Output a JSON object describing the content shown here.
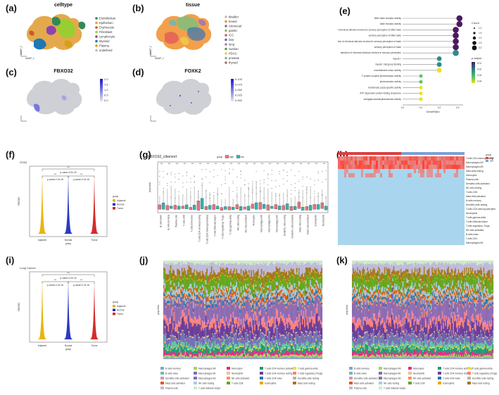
{
  "panels": {
    "a": {
      "letter": "(a)",
      "title": "celltype",
      "legend": [
        {
          "label": "Endothelium",
          "color": "#2e8b57"
        },
        {
          "label": "Epithelium",
          "color": "#e2a03a"
        },
        {
          "label": "Erythrocyte",
          "color": "#c65a2a"
        },
        {
          "label": "Fibroblast",
          "color": "#9acd32"
        },
        {
          "label": "Lymphocyte",
          "color": "#8e44ad"
        },
        {
          "label": "Myeloid",
          "color": "#1f77b4"
        },
        {
          "label": "Plasma",
          "color": "#d4a017"
        },
        {
          "label": "undefined",
          "color": "#bdbdbd"
        }
      ],
      "axis1": "UMAP_1",
      "axis2": "UMAP_2"
    },
    "b": {
      "letter": "(b)",
      "title": "tissue",
      "legend": [
        {
          "label": "bladder",
          "color": "#bdbdbd"
        },
        {
          "label": "breast",
          "color": "#f28e2b"
        },
        {
          "label": "colorectal",
          "color": "#7b7b7b"
        },
        {
          "label": "gastric",
          "color": "#7fbf7b"
        },
        {
          "label": "ICC",
          "color": "#e15759"
        },
        {
          "label": "liver",
          "color": "#4e79a7"
        },
        {
          "label": "lung",
          "color": "#b07aa1"
        },
        {
          "label": "ovarian",
          "color": "#59a14f"
        },
        {
          "label": "PDAC",
          "color": "#edc948"
        },
        {
          "label": "prostate",
          "color": "#76b7b2"
        },
        {
          "label": "thyroid",
          "color": "#9c755f"
        }
      ],
      "axis1": "UMAP_1",
      "axis2": "UMAP_2"
    },
    "c": {
      "letter": "(c)",
      "title": "FBXO32",
      "scale": [
        "2.0",
        "1.5",
        "1.0",
        "0.5",
        "0.0"
      ]
    },
    "d": {
      "letter": "(d)",
      "title": "FOXK2",
      "scale": [
        "0.100",
        "0.075",
        "0.050",
        "0.025",
        "0.000"
      ]
    },
    "e": {
      "letter": "(e)",
      "terms": [
        {
          "label": "bitter taste receptor activity",
          "ratio": 0.31,
          "count": 3,
          "p": 0.01
        },
        {
          "label": "taste receptor activity",
          "ratio": 0.31,
          "count": 3,
          "p": 0.01
        },
        {
          "label": "detection of chemical stimulus involved in sensory perception of bitter taste",
          "ratio": 0.29,
          "count": 3,
          "p": 0.01
        },
        {
          "label": "sensory perception of bitter taste",
          "ratio": 0.29,
          "count": 3,
          "p": 0.01
        },
        {
          "label": "detection of chemical stimulus involved in sensory perception of taste",
          "ratio": 0.29,
          "count": 3,
          "p": 0.01
        },
        {
          "label": "sensory perception of taste",
          "ratio": 0.29,
          "count": 3,
          "p": 0.01
        },
        {
          "label": "detection of chemical stimulus involved in sensory perception",
          "ratio": 0.29,
          "count": 3,
          "p": 0.02
        },
        {
          "label": "myosin I",
          "ratio": 0.2,
          "count": 2,
          "p": 0.02
        },
        {
          "label": "myosin I tail group binding",
          "ratio": 0.2,
          "count": 2,
          "p": 0.02
        },
        {
          "label": "microfilament motor activity",
          "ratio": 0.2,
          "count": 2,
          "p": 0.04
        },
        {
          "label": "F-protein coupled photoreceptor activity",
          "ratio": 0.1,
          "count": 1,
          "p": 0.03
        },
        {
          "label": "photoreceptor activity",
          "ratio": 0.1,
          "count": 1,
          "p": 0.03
        },
        {
          "label": "transferase (acyl) specific activity",
          "ratio": 0.1,
          "count": 1,
          "p": 0.04
        },
        {
          "label": "ATP dependent protein folding chaperone",
          "ratio": 0.1,
          "count": 1,
          "p": 0.04
        },
        {
          "label": "acetylglucosaminyltransferase activity",
          "ratio": 0.1,
          "count": 1,
          "p": 0.04
        }
      ],
      "xlabel": "GeneRatio",
      "xticks": [
        "0.0",
        "0.1",
        "0.2",
        "0.3"
      ],
      "count_title": "Count",
      "count_values": [
        "1.0",
        "1.5",
        "2.0",
        "2.5",
        "3.0"
      ],
      "p_title": "p.adjust",
      "p_values": [
        "0.01",
        "0.02",
        "0.03",
        "0.04"
      ]
    },
    "f": {
      "letter": "(f)",
      "title": "STAD",
      "ylabel": "FBXO32",
      "xlabel": "group",
      "groups": [
        "Adjacent",
        "Normal",
        "Tumor"
      ],
      "group_colors": [
        "#e8b100",
        "#1f2fbf",
        "#d42020"
      ],
      "stars": [
        "***",
        "***",
        "***"
      ],
      "pvals": [
        "p-value<2.2e-16",
        "p-value<2.2e-16",
        "p-value<2.2e-16"
      ],
      "legend_title": "group"
    },
    "g": {
      "letter": "(g)",
      "title": "FBXO32_cibersort",
      "legend_title": "group",
      "legend": [
        "high",
        "low"
      ],
      "colors": [
        "#e8737a",
        "#34b1b5"
      ],
      "ylabel": "proportion",
      "cells": [
        "B.cells.naive",
        "B.cells.memory",
        "Plasma.cells",
        "T.cells.CD8",
        "T.cells.CD4.naive",
        "T.cells.CD4.memory.resting",
        "T.cells.CD4.memory.activated",
        "T.cells.follicular.helper",
        "T.cells.regulatory..Tregs.",
        "T.cells.gamma.delta",
        "NK.cells.resting",
        "NK.cells.activated",
        "Monocytes",
        "Macrophages.M0",
        "Macrophages.M1",
        "Macrophages.M2",
        "Dendritic.cells.resting",
        "Dendritic.cells.activated",
        "Mast.cells.resting",
        "Mast.cells.activated",
        "Eosinophils",
        "Neutrophils"
      ]
    },
    "h": {
      "letter": "(h)",
      "rows": [
        "T.cells.CD4.memory.resting",
        "Macrophages.M2",
        "Macrophages.M0",
        "Mast.cells.resting",
        "Monocytes",
        "Plasma.cells",
        "Dendritic.cells.activated",
        "NK.cells.resting",
        "T.cells.CD8",
        "Mast.cells.activated",
        "B.cells.memory",
        "Dendritic.cells.resting",
        "T.cells.CD4.memory.activated",
        "Neutrophils",
        "T.cells.gamma.delta",
        "T.cells.follicular.helper",
        "T.cells.regulatory..Tregs.",
        "NK.cells.activated",
        "B.cells.naive",
        "T.cells.CD4",
        "Macrophages.M1"
      ],
      "group_label": "group",
      "groups": [
        "high",
        "low"
      ],
      "group_colors": [
        "#d94040",
        "#7b9fd6"
      ]
    },
    "i": {
      "letter": "(i)",
      "title": "Lung Cancer",
      "ylabel": "FBXO32",
      "xlabel": "group",
      "groups": [
        "Adjacent",
        "Normal",
        "Tumor"
      ],
      "group_colors": [
        "#e8b100",
        "#1f2fbf",
        "#d42020"
      ],
      "stars": [
        "***",
        "***",
        "***"
      ],
      "pvals": [
        "p-value<2.2e-16",
        "p-value<2.2e-16",
        "p-value<2.2e-16"
      ],
      "legend_title": "group"
    },
    "j": {
      "letter": "(j)",
      "ylabel": "proportion"
    },
    "k": {
      "letter": "(k)",
      "ylabel": "proportion"
    },
    "stack_legend": [
      {
        "label": "B cells memory",
        "color": "#8da0cb"
      },
      {
        "label": "Macrophages M0",
        "color": "#a6d854"
      },
      {
        "label": "Monocytes",
        "color": "#e7298a"
      },
      {
        "label": "T cells CD4 memory activated",
        "color": "#1b9e77"
      },
      {
        "label": "T cells gamma delta",
        "color": "#ffd92f"
      },
      {
        "label": "B cells naive",
        "color": "#66c2a5"
      },
      {
        "label": "Macrophages M1",
        "color": "#7570b3"
      },
      {
        "label": "Neutrophils",
        "color": "#e5c494"
      },
      {
        "label": "T cells CD4 memory resting",
        "color": "#6a3d9a"
      },
      {
        "label": "T cells regulatory (Tregs)",
        "color": "#fb8072"
      },
      {
        "label": "Dendritic cells activated",
        "color": "#e78ac3"
      },
      {
        "label": "Macrophages M2",
        "color": "#8c6bb1"
      },
      {
        "label": "NK cells activated",
        "color": "#fc8d62"
      },
      {
        "label": "T cells CD4 naive",
        "color": "#1f78b4"
      },
      {
        "label": "Dendritic cells resting",
        "color": "#b3b3b3"
      },
      {
        "label": "Mast cells activated",
        "color": "#d95f02"
      },
      {
        "label": "NK cells resting",
        "color": "#a6cee3"
      },
      {
        "label": "T cells CD8",
        "color": "#66a61e"
      },
      {
        "label": "Eosinophils",
        "color": "#e6ab02"
      },
      {
        "label": "Mast cells resting",
        "color": "#a6761d"
      },
      {
        "label": "Plasma cells",
        "color": "#bebada"
      },
      {
        "label": "T cells follicular helper",
        "color": "#ccebc5"
      }
    ]
  }
}
